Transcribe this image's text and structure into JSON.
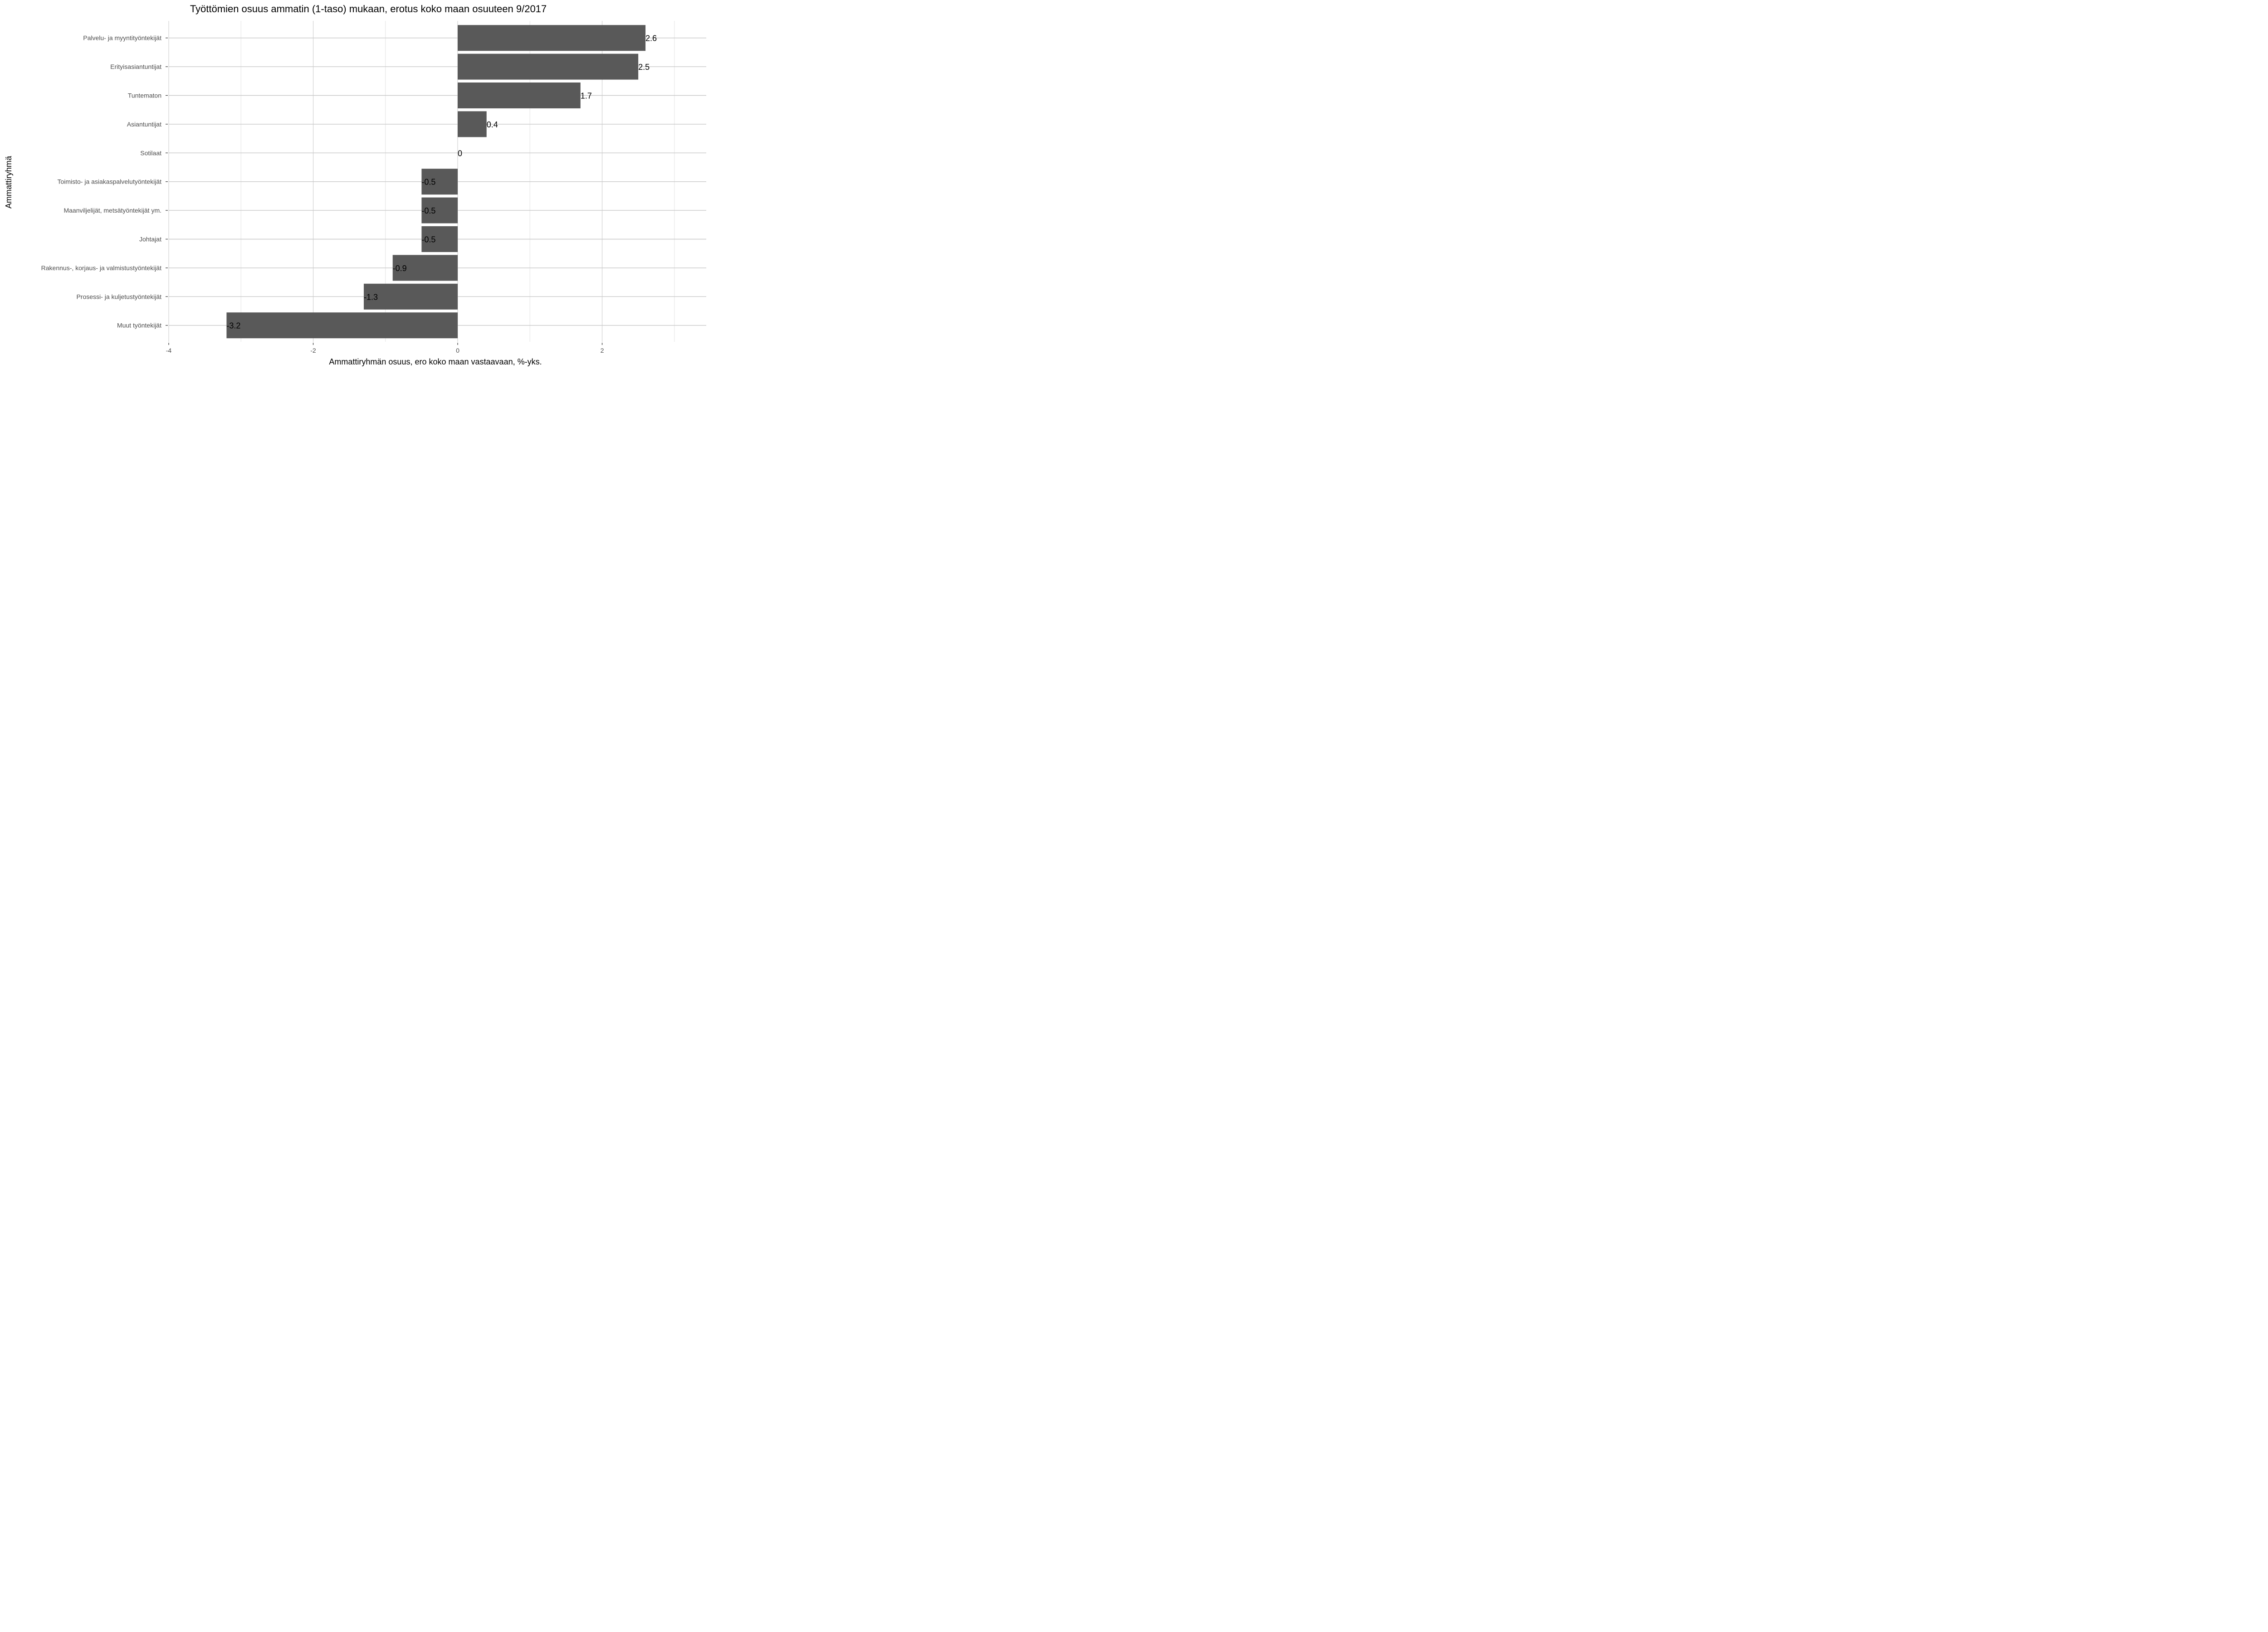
{
  "chart_data": {
    "type": "bar",
    "orientation": "horizontal",
    "title": "Työttömien osuus ammatin (1-taso) mukaan, erotus koko maan osuuteen 9/2017",
    "xlabel": "Ammattiryhmän osuus, ero koko maan vastaavaan, %-yks.",
    "ylabel": "Ammattiryhmä",
    "categories": [
      "Palvelu- ja myyntityöntekijät",
      "Erityisasiantuntijat",
      "Tuntematon",
      "Asiantuntijat",
      "Sotilaat",
      "Toimisto- ja asiakaspalvelutyöntekijät",
      "Maanviljelijät, metsätyöntekijät ym.",
      "Johtajat",
      "Rakennus-, korjaus- ja valmistustyöntekijät",
      "Prosessi- ja kuljetustyöntekijät",
      "Muut työntekijät"
    ],
    "values": [
      2.6,
      2.5,
      1.7,
      0.4,
      0,
      -0.5,
      -0.5,
      -0.5,
      -0.9,
      -1.3,
      -3.2
    ],
    "data_labels": [
      "2.6",
      "2.5",
      "1.7",
      "0.4",
      "0",
      "-0.5",
      "-0.5",
      "-0.5",
      "-0.9",
      "-1.3",
      "-3.2"
    ],
    "xlim": [
      -4,
      3.4
    ],
    "xticks": [
      -4,
      -2,
      0,
      2
    ],
    "xtick_labels": [
      "-4",
      "-2",
      "0",
      "2"
    ],
    "grid": true,
    "bar_color": "#595959",
    "grid_major_color": "#c8c8c8",
    "grid_minor_color": "#e2e2e2"
  }
}
